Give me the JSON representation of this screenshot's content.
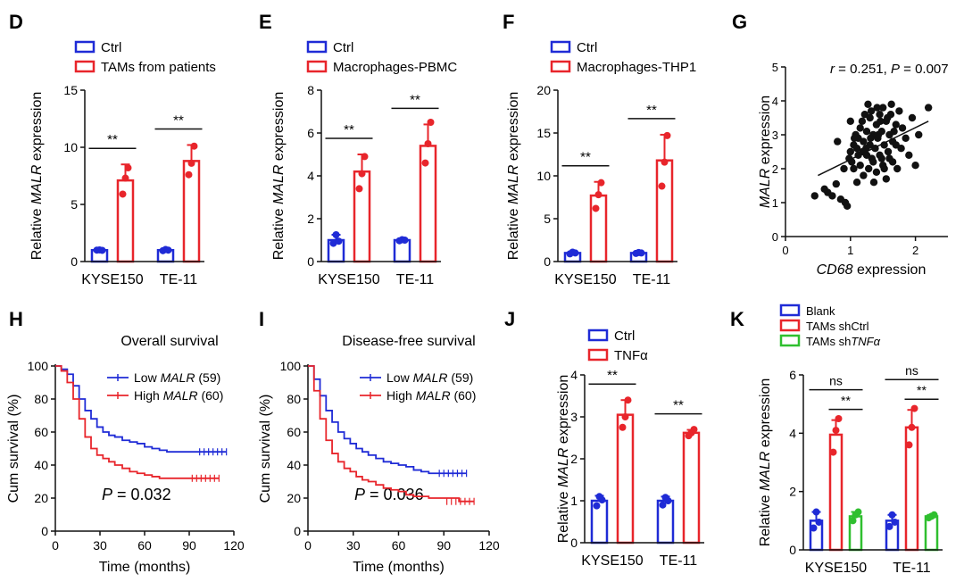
{
  "figure": {
    "colors": {
      "blue": "#1f2bd6",
      "red": "#e8252b",
      "green": "#2fbf2f",
      "black": "#111111"
    }
  },
  "chart_data": [
    {
      "panel": "D",
      "type": "bar",
      "ylabel_pre": "Relative ",
      "ylabel_it": "MALR",
      "ylabel_post": " expression",
      "yticks": [
        "0",
        "5",
        "10",
        "15"
      ],
      "ylim": [
        0,
        15
      ],
      "categories": [
        "KYSE150",
        "TE-11"
      ],
      "series": [
        {
          "name": "Ctrl",
          "color": "#1f2bd6",
          "values": [
            1.0,
            1.0
          ],
          "sd": [
            0.1,
            0.1
          ],
          "points": [
            [
              1.0,
              1.02,
              0.98
            ],
            [
              0.95,
              1.05,
              1.0
            ]
          ]
        },
        {
          "name": "TAMs from patients",
          "color": "#e8252b",
          "values": [
            7.1,
            8.8
          ],
          "sd": [
            1.4,
            1.4
          ],
          "points": [
            [
              5.9,
              7.3,
              8.2
            ],
            [
              7.6,
              8.6,
              10.1
            ]
          ]
        }
      ],
      "sig": [
        {
          "label": "**",
          "cat": 0
        },
        {
          "label": "**",
          "cat": 1
        }
      ]
    },
    {
      "panel": "E",
      "type": "bar",
      "ylabel_pre": "Relative ",
      "ylabel_it": "MALR",
      "ylabel_post": " expression",
      "yticks": [
        "0",
        "2",
        "4",
        "6",
        "8"
      ],
      "ylim": [
        0,
        8
      ],
      "categories": [
        "KYSE150",
        "TE-11"
      ],
      "series": [
        {
          "name": "Ctrl",
          "color": "#1f2bd6",
          "values": [
            1.0,
            1.0
          ],
          "sd": [
            0.25,
            0.05
          ],
          "points": [
            [
              0.85,
              1.25,
              0.95
            ],
            [
              0.97,
              1.02,
              1.0
            ]
          ]
        },
        {
          "name": "Macrophages-PBMC",
          "color": "#e8252b",
          "values": [
            4.2,
            5.4
          ],
          "sd": [
            0.8,
            1.0
          ],
          "points": [
            [
              3.4,
              4.1,
              4.9
            ],
            [
              4.6,
              5.5,
              6.5
            ]
          ]
        }
      ],
      "sig": [
        {
          "label": "**",
          "cat": 0
        },
        {
          "label": "**",
          "cat": 1
        }
      ]
    },
    {
      "panel": "F",
      "type": "bar",
      "ylabel_pre": "Relative ",
      "ylabel_it": "MALR",
      "ylabel_post": " expression",
      "yticks": [
        "0",
        "5",
        "10",
        "15",
        "20"
      ],
      "ylim": [
        0,
        20
      ],
      "categories": [
        "KYSE150",
        "TE-11"
      ],
      "series": [
        {
          "name": "Ctrl",
          "color": "#1f2bd6",
          "values": [
            1.0,
            1.0
          ],
          "sd": [
            0.15,
            0.1
          ],
          "points": [
            [
              0.9,
              1.1,
              1.0
            ],
            [
              0.95,
              1.05,
              1.0
            ]
          ]
        },
        {
          "name": "Macrophages-THP1",
          "color": "#e8252b",
          "values": [
            7.7,
            11.8
          ],
          "sd": [
            1.6,
            3.0
          ],
          "points": [
            [
              6.2,
              7.8,
              9.2
            ],
            [
              8.8,
              11.6,
              14.7
            ]
          ]
        }
      ],
      "sig": [
        {
          "label": "**",
          "cat": 0
        },
        {
          "label": "**",
          "cat": 1
        }
      ]
    },
    {
      "panel": "G",
      "type": "scatter",
      "annotation_r": "r",
      "annotation_r_val": " = 0.251, ",
      "annotation_p": "P",
      "annotation_p_val": " = 0.007",
      "xlabel_it": "CD68",
      "xlabel_post": " expression",
      "ylabel_it": "MALR",
      "ylabel_post": " expression",
      "xticks": [
        "0",
        "1",
        "2"
      ],
      "yticks": [
        "0",
        "1",
        "2",
        "3",
        "4",
        "5"
      ],
      "xlim": [
        0,
        2.5
      ],
      "ylim": [
        0,
        5
      ],
      "fit": {
        "x": [
          0.5,
          2.2
        ],
        "y": [
          1.8,
          3.4
        ]
      },
      "points": [
        [
          0.45,
          1.2
        ],
        [
          0.6,
          1.4
        ],
        [
          0.65,
          1.3
        ],
        [
          0.72,
          1.2
        ],
        [
          0.78,
          1.55
        ],
        [
          0.85,
          1.1
        ],
        [
          0.9,
          2.0
        ],
        [
          0.92,
          1.0
        ],
        [
          0.95,
          0.9
        ],
        [
          0.98,
          2.3
        ],
        [
          1.0,
          2.5
        ],
        [
          1.02,
          2.2
        ],
        [
          1.05,
          2.0
        ],
        [
          1.05,
          2.7
        ],
        [
          1.08,
          3.0
        ],
        [
          1.1,
          1.6
        ],
        [
          1.1,
          2.6
        ],
        [
          1.12,
          2.9
        ],
        [
          1.15,
          3.2
        ],
        [
          1.15,
          2.1
        ],
        [
          1.18,
          3.4
        ],
        [
          1.2,
          2.8
        ],
        [
          1.2,
          1.8
        ],
        [
          1.22,
          3.6
        ],
        [
          1.25,
          2.4
        ],
        [
          1.25,
          3.1
        ],
        [
          1.28,
          2.0
        ],
        [
          1.3,
          3.5
        ],
        [
          1.3,
          2.7
        ],
        [
          1.32,
          3.7
        ],
        [
          1.35,
          2.2
        ],
        [
          1.35,
          3.0
        ],
        [
          1.38,
          2.6
        ],
        [
          1.4,
          3.3
        ],
        [
          1.4,
          1.9
        ],
        [
          1.42,
          2.9
        ],
        [
          1.45,
          3.6
        ],
        [
          1.45,
          2.4
        ],
        [
          1.48,
          3.1
        ],
        [
          1.5,
          2.1
        ],
        [
          1.5,
          3.8
        ],
        [
          1.52,
          2.7
        ],
        [
          1.55,
          3.4
        ],
        [
          1.55,
          1.7
        ],
        [
          1.58,
          2.5
        ],
        [
          1.6,
          3.0
        ],
        [
          1.62,
          3.6
        ],
        [
          1.65,
          2.2
        ],
        [
          1.65,
          2.8
        ],
        [
          1.7,
          3.3
        ],
        [
          1.72,
          2.0
        ],
        [
          1.75,
          3.7
        ],
        [
          1.78,
          2.6
        ],
        [
          1.8,
          3.2
        ],
        [
          1.85,
          2.9
        ],
        [
          1.9,
          2.4
        ],
        [
          1.95,
          3.5
        ],
        [
          2.0,
          2.1
        ],
        [
          2.05,
          3.0
        ],
        [
          2.2,
          3.8
        ],
        [
          1.33,
          2.3
        ],
        [
          1.27,
          3.9
        ],
        [
          1.43,
          3.0
        ],
        [
          1.6,
          2.3
        ],
        [
          1.12,
          2.4
        ],
        [
          1.36,
          1.6
        ],
        [
          1.48,
          2.3
        ],
        [
          1.7,
          2.7
        ],
        [
          0.8,
          2.8
        ],
        [
          1.0,
          3.4
        ],
        [
          1.24,
          2.6
        ],
        [
          1.46,
          3.4
        ],
        [
          1.52,
          2.0
        ],
        [
          1.63,
          3.9
        ],
        [
          1.41,
          3.8
        ],
        [
          1.57,
          3.5
        ],
        [
          1.67,
          3.1
        ],
        [
          1.06,
          2.9
        ],
        [
          1.19,
          2.5
        ],
        [
          1.31,
          2.9
        ]
      ]
    },
    {
      "panel": "H",
      "type": "line",
      "title": "Overall survival",
      "xlabel": "Time (months)",
      "ylabel": "Cum survival (%)",
      "xticks": [
        "0",
        "30",
        "60",
        "90",
        "120"
      ],
      "yticks": [
        "0",
        "20",
        "40",
        "60",
        "80",
        "100"
      ],
      "xlim": [
        0,
        120
      ],
      "ylim": [
        0,
        100
      ],
      "annotation_p": "P",
      "annotation_p_val": " = 0.032",
      "series": [
        {
          "name_it": "MALR",
          "name_pre": "Low ",
          "name_post": " (59)",
          "color": "#1f2bd6",
          "x": [
            0,
            4,
            8,
            12,
            16,
            20,
            24,
            28,
            32,
            36,
            40,
            45,
            50,
            55,
            60,
            65,
            70,
            75,
            80,
            85,
            90,
            95,
            100,
            105,
            115
          ],
          "y": [
            100,
            98,
            95,
            88,
            80,
            73,
            68,
            63,
            60,
            58,
            57,
            55,
            54,
            53,
            51,
            50,
            49,
            48,
            48,
            48,
            48,
            48,
            48,
            48,
            48
          ]
        },
        {
          "name_it": "MALR",
          "name_pre": "High ",
          "name_post": " (60)",
          "color": "#e8252b",
          "x": [
            0,
            4,
            8,
            12,
            16,
            20,
            24,
            28,
            32,
            36,
            40,
            45,
            50,
            55,
            60,
            65,
            70,
            75,
            80,
            85,
            90,
            95,
            100,
            105,
            110
          ],
          "y": [
            100,
            97,
            90,
            80,
            68,
            57,
            50,
            46,
            44,
            42,
            40,
            38,
            36,
            35,
            34,
            33,
            32,
            32,
            32,
            32,
            32,
            32,
            32,
            32,
            32
          ]
        }
      ]
    },
    {
      "panel": "I",
      "type": "line",
      "title": "Disease-free survival",
      "xlabel": "Time (months)",
      "ylabel": "Cum survival (%)",
      "xticks": [
        "0",
        "30",
        "60",
        "90",
        "120"
      ],
      "yticks": [
        "0",
        "20",
        "40",
        "60",
        "80",
        "100"
      ],
      "xlim": [
        0,
        120
      ],
      "ylim": [
        0,
        100
      ],
      "annotation_p": "P",
      "annotation_p_val": " = 0.036",
      "series": [
        {
          "name_it": "MALR",
          "name_pre": "Low ",
          "name_post": " (59)",
          "color": "#1f2bd6",
          "x": [
            0,
            4,
            8,
            12,
            16,
            20,
            24,
            28,
            32,
            36,
            40,
            45,
            50,
            55,
            60,
            65,
            70,
            75,
            80,
            85,
            90,
            95,
            100,
            105
          ],
          "y": [
            100,
            92,
            82,
            73,
            66,
            60,
            56,
            53,
            50,
            48,
            46,
            44,
            42,
            41,
            40,
            39,
            37,
            36,
            35,
            35,
            35,
            35,
            35,
            35
          ]
        },
        {
          "name_it": "MALR",
          "name_pre": "High ",
          "name_post": " (60)",
          "color": "#e8252b",
          "x": [
            0,
            4,
            8,
            12,
            16,
            20,
            24,
            28,
            32,
            36,
            40,
            45,
            50,
            55,
            60,
            65,
            70,
            75,
            80,
            85,
            90,
            95,
            100,
            105,
            110
          ],
          "y": [
            100,
            85,
            68,
            55,
            47,
            42,
            38,
            36,
            33,
            31,
            30,
            28,
            26,
            25,
            24,
            22,
            21,
            21,
            20,
            20,
            20,
            20,
            18,
            18,
            18
          ]
        }
      ]
    },
    {
      "panel": "J",
      "type": "bar",
      "ylabel_pre": "Relative ",
      "ylabel_it": "MALR",
      "ylabel_post": " expression",
      "yticks": [
        "0",
        "1",
        "2",
        "3",
        "4"
      ],
      "ylim": [
        0,
        4
      ],
      "categories": [
        "KYSE150",
        "TE-11"
      ],
      "series": [
        {
          "name": "Ctrl",
          "color": "#1f2bd6",
          "values": [
            1.0,
            1.0
          ],
          "sd": [
            0.12,
            0.1
          ],
          "points": [
            [
              0.88,
              1.1,
              1.02
            ],
            [
              0.9,
              1.08,
              1.0
            ]
          ]
        },
        {
          "name": "TNFα",
          "color": "#e8252b",
          "values": [
            3.05,
            2.62
          ],
          "sd": [
            0.35,
            0.07
          ],
          "points": [
            [
              2.75,
              3.0,
              3.4
            ],
            [
              2.55,
              2.62,
              2.7
            ]
          ]
        }
      ],
      "sig": [
        {
          "label": "**",
          "cat": 0
        },
        {
          "label": "**",
          "cat": 1
        }
      ]
    },
    {
      "panel": "K",
      "type": "bar",
      "ylabel_pre": "Relative ",
      "ylabel_it": "MALR",
      "ylabel_post": " expression",
      "yticks": [
        "0",
        "2",
        "4",
        "6"
      ],
      "ylim": [
        0,
        6
      ],
      "categories": [
        "KYSE150",
        "TE-11"
      ],
      "series": [
        {
          "name_pre": "Blank",
          "name_it": "",
          "color": "#1f2bd6",
          "values": [
            1.0,
            1.0
          ],
          "sd": [
            0.3,
            0.2
          ],
          "points": [
            [
              0.75,
              1.3,
              0.95
            ],
            [
              0.8,
              1.2,
              0.95
            ]
          ]
        },
        {
          "name_pre": "TAMs shCtrl",
          "name_it": "",
          "color": "#e8252b",
          "values": [
            3.95,
            4.2
          ],
          "sd": [
            0.5,
            0.6
          ],
          "points": [
            [
              3.35,
              4.1,
              4.5
            ],
            [
              3.6,
              4.2,
              4.85
            ]
          ]
        },
        {
          "name_pre": "TAMs sh",
          "name_it": "TNFα",
          "color": "#2fbf2f",
          "values": [
            1.15,
            1.15
          ],
          "sd": [
            0.15,
            0.05
          ],
          "points": [
            [
              1.0,
              1.2,
              1.3
            ],
            [
              1.1,
              1.15,
              1.2
            ]
          ]
        }
      ],
      "sig3": [
        {
          "label": "ns",
          "cat": 0,
          "from": 0,
          "to": 2,
          "level": 2
        },
        {
          "label": "**",
          "cat": 0,
          "from": 1,
          "to": 2,
          "level": 1
        },
        {
          "label": "ns",
          "cat": 1,
          "from": 0,
          "to": 2,
          "level": 2
        },
        {
          "label": "**",
          "cat": 1,
          "from": 1,
          "to": 2,
          "level": 1
        }
      ]
    }
  ]
}
